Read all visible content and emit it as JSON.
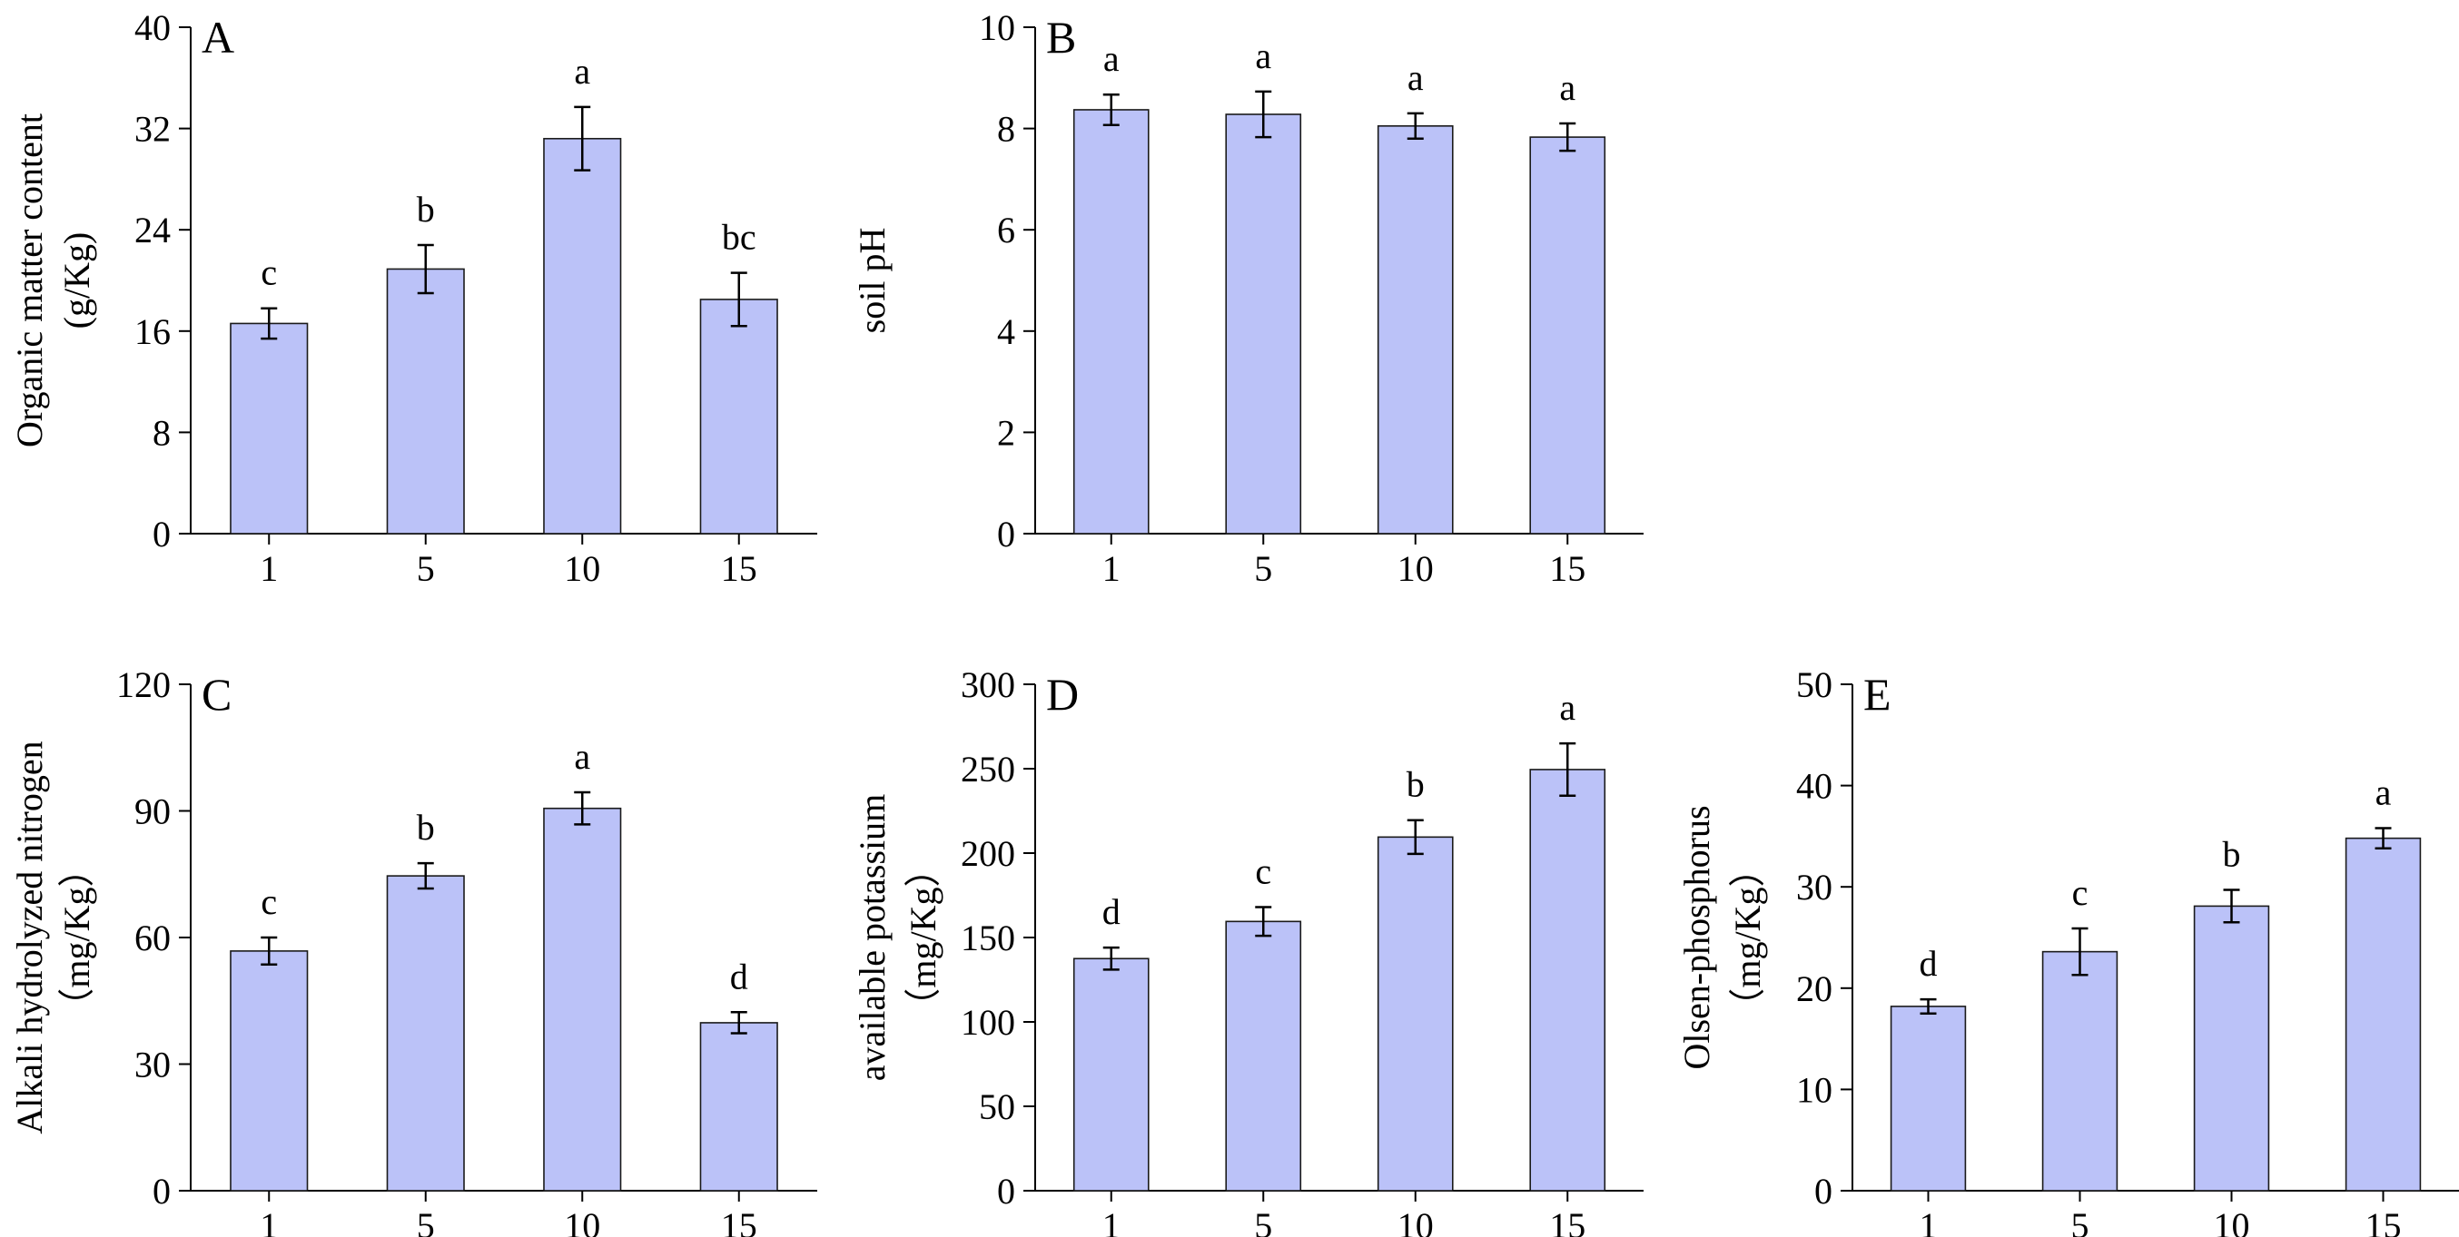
{
  "colors": {
    "bar_fill": "#bbc2f8",
    "bar_stroke": "#1a1a1a",
    "axis": "#000000"
  },
  "chart_data": [
    {
      "type": "bar",
      "panel_label": "A",
      "categories": [
        "1",
        "5",
        "10",
        "15"
      ],
      "values": [
        16.6,
        20.9,
        31.2,
        18.5
      ],
      "errors": [
        1.2,
        1.9,
        2.5,
        2.1
      ],
      "significance": [
        "c",
        "b",
        "a",
        "bc"
      ],
      "ylabel": "Organic matter content",
      "ylabel2": "(g/Kg)",
      "ylim": [
        0,
        40
      ],
      "yticks": [
        "0",
        "8",
        "16",
        "24",
        "32",
        "40"
      ]
    },
    {
      "type": "bar",
      "panel_label": "B",
      "categories": [
        "1",
        "5",
        "10",
        "15"
      ],
      "values": [
        8.37,
        8.28,
        8.05,
        7.83
      ],
      "errors": [
        0.3,
        0.45,
        0.25,
        0.27
      ],
      "significance": [
        "a",
        "a",
        "a",
        "a"
      ],
      "ylabel": "soil pH",
      "ylabel2": "",
      "ylim": [
        0,
        10
      ],
      "yticks": [
        "0",
        "2",
        "4",
        "6",
        "8",
        "10"
      ]
    },
    {
      "type": "bar",
      "panel_label": "C",
      "categories": [
        "1",
        "5",
        "10",
        "15"
      ],
      "values": [
        56.8,
        74.6,
        90.6,
        39.8
      ],
      "errors": [
        3.2,
        3.0,
        3.8,
        2.5
      ],
      "significance": [
        "c",
        "b",
        "a",
        "d"
      ],
      "ylabel": "Alkali hydrolyzed nitrogen",
      "ylabel2": "（mg/Kg）",
      "ylim": [
        0,
        120
      ],
      "yticks": [
        "0",
        "30",
        "60",
        "90",
        "120"
      ]
    },
    {
      "type": "bar",
      "panel_label": "D",
      "categories": [
        "1",
        "5",
        "10",
        "15"
      ],
      "values": [
        137.5,
        159.5,
        209.5,
        249.5
      ],
      "errors": [
        6.5,
        8.5,
        10.0,
        15.5
      ],
      "significance": [
        "d",
        "c",
        "b",
        "a"
      ],
      "ylabel": "available potassium",
      "ylabel2": "（mg/Kg）",
      "ylim": [
        0,
        300
      ],
      "yticks": [
        "0",
        "50",
        "100",
        "150",
        "200",
        "250",
        "300"
      ]
    },
    {
      "type": "bar",
      "panel_label": "E",
      "categories": [
        "1",
        "5",
        "10",
        "15"
      ],
      "values": [
        18.2,
        23.6,
        28.1,
        34.8
      ],
      "errors": [
        0.7,
        2.3,
        1.6,
        1.0
      ],
      "significance": [
        "d",
        "c",
        "b",
        "a"
      ],
      "ylabel": "Olsen-phosphorus",
      "ylabel2": "（mg/Kg）",
      "ylim": [
        0,
        50
      ],
      "yticks": [
        "0",
        "10",
        "20",
        "30",
        "40",
        "50"
      ]
    }
  ]
}
